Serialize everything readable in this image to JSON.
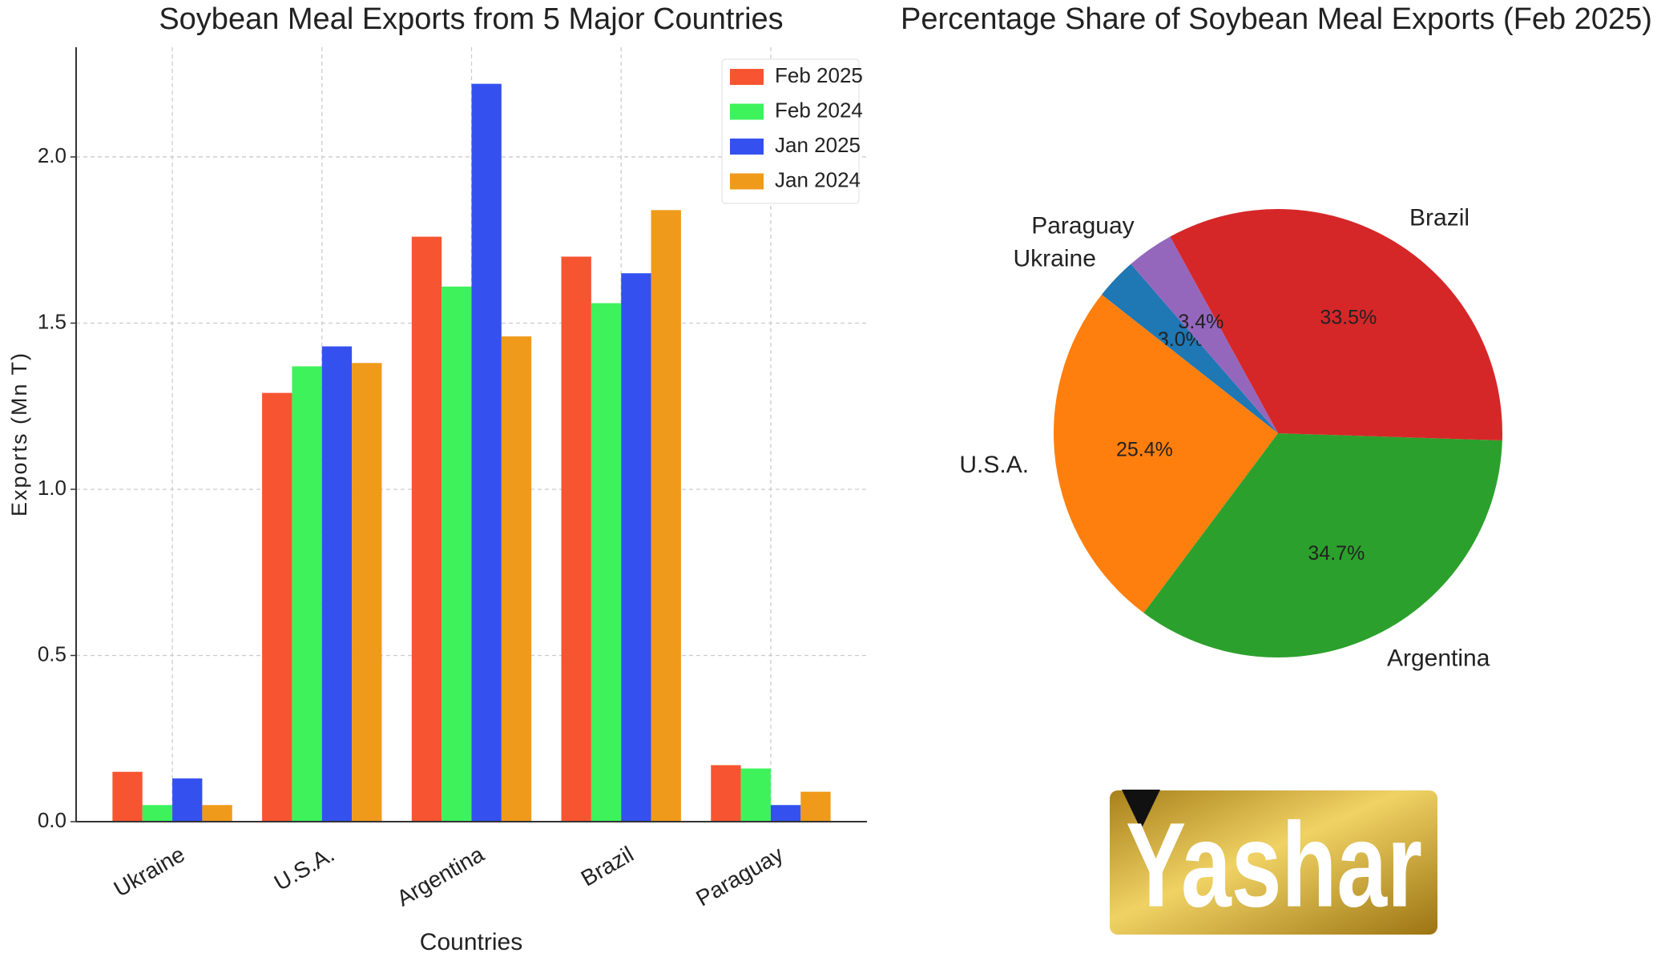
{
  "chart_data": [
    {
      "type": "bar",
      "title": "Soybean Meal Exports from 5 Major Countries",
      "x_label": "Countries",
      "y_label": "Exports (Mn T)",
      "categories": [
        "Ukraine",
        "U.S.A.",
        "Argentina",
        "Brazil",
        "Paraguay"
      ],
      "series": [
        {
          "name": "Feb 2025",
          "color": "#f75431",
          "values": [
            0.15,
            1.29,
            1.76,
            1.7,
            0.17
          ]
        },
        {
          "name": "Feb 2024",
          "color": "#3ef25c",
          "values": [
            0.05,
            1.37,
            1.61,
            1.56,
            0.16
          ]
        },
        {
          "name": "Jan 2025",
          "color": "#3451ef",
          "values": [
            0.13,
            1.43,
            2.22,
            1.65,
            0.05
          ]
        },
        {
          "name": "Jan 2024",
          "color": "#ef9a1b",
          "values": [
            0.05,
            1.38,
            1.46,
            1.84,
            0.09
          ]
        }
      ],
      "ylim": [
        0,
        2.33
      ],
      "yticks": [
        {
          "value": 0,
          "label": "0.0"
        },
        {
          "value": 0.5,
          "label": "0.5"
        },
        {
          "value": 1,
          "label": "1.0"
        },
        {
          "value": 1.5,
          "label": "1.5"
        },
        {
          "value": 2,
          "label": "2.0"
        }
      ],
      "grid": true,
      "legend": "upper right"
    },
    {
      "type": "pie",
      "title": "Percentage Share of Soybean Meal Exports (Feb 2025)",
      "categories": [
        "Ukraine",
        "U.S.A.",
        "Argentina",
        "Brazil",
        "Paraguay"
      ],
      "values": [
        3.0,
        25.4,
        34.7,
        33.5,
        3.4
      ],
      "value_labels": [
        "3.0%",
        "25.4%",
        "34.7%",
        "33.5%",
        "3.4%"
      ],
      "colors": [
        "#1f77b4",
        "#ff7f0e",
        "#2ca02c",
        "#d62728",
        "#9467bd"
      ]
    }
  ],
  "logo": "Yashar"
}
